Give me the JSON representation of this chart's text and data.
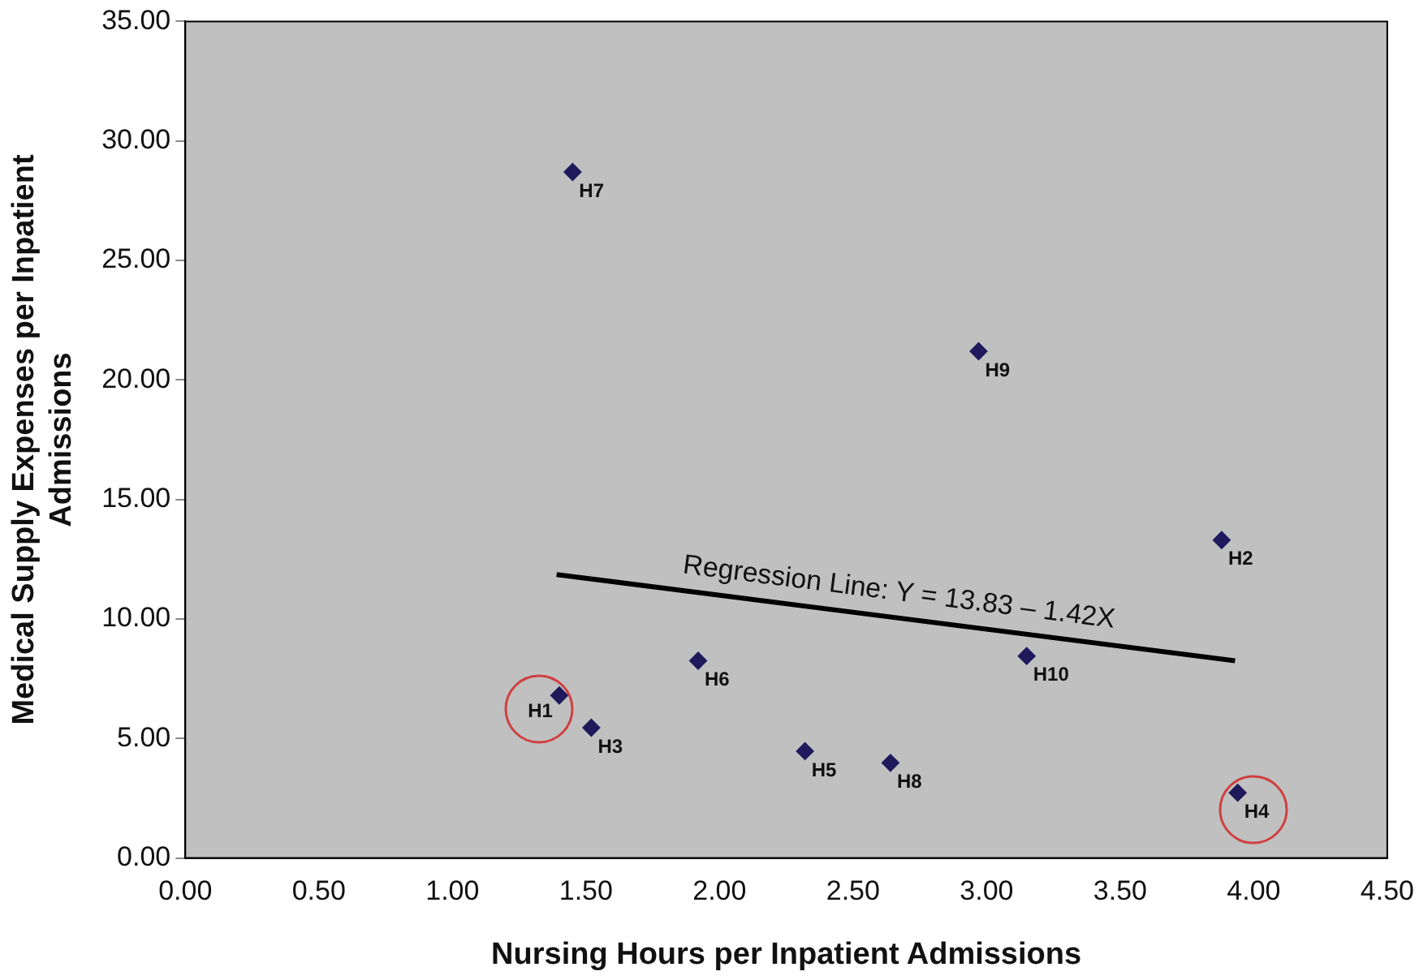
{
  "chart_data": {
    "type": "scatter",
    "xlabel": "Nursing Hours per Inpatient Admissions",
    "ylabel": "Medical Supply Expenses per Inpatient Admissions",
    "xlim": [
      0,
      4.5
    ],
    "ylim": [
      0,
      35
    ],
    "xticks": [
      {
        "value": 0,
        "label": "0.00"
      },
      {
        "value": 0.5,
        "label": "0.50"
      },
      {
        "value": 1,
        "label": "1.00"
      },
      {
        "value": 1.5,
        "label": "1.50"
      },
      {
        "value": 2,
        "label": "2.00"
      },
      {
        "value": 2.5,
        "label": "2.50"
      },
      {
        "value": 3,
        "label": "3.00"
      },
      {
        "value": 3.5,
        "label": "3.50"
      },
      {
        "value": 4,
        "label": "4.00"
      },
      {
        "value": 4.5,
        "label": "4.50"
      }
    ],
    "yticks": [
      {
        "value": 0,
        "label": "0.00"
      },
      {
        "value": 5,
        "label": "5.00"
      },
      {
        "value": 10,
        "label": "10.00"
      },
      {
        "value": 15,
        "label": "15.00"
      },
      {
        "value": 20,
        "label": "20.00"
      },
      {
        "value": 25,
        "label": "25.00"
      },
      {
        "value": 30,
        "label": "30.00"
      },
      {
        "value": 35,
        "label": "35.00"
      }
    ],
    "grid": false,
    "legend": false,
    "series": [
      {
        "color": "#1f1a5c",
        "marker": "diamond",
        "x": [
          1.45,
          2.97,
          3.88,
          1.92,
          3.15,
          1.4,
          1.52,
          2.32,
          2.64,
          3.94
        ],
        "values": [
          28.7,
          21.2,
          13.3,
          8.25,
          8.45,
          6.8,
          5.45,
          4.47,
          3.98,
          2.73
        ]
      },
      {
        "type": "line",
        "color": "#000000",
        "marker": "none",
        "line_style": "solid",
        "x": [
          1.39,
          3.93
        ],
        "values": [
          11.86,
          8.25
        ]
      }
    ],
    "annotations": [
      {
        "text": "H7",
        "x": 1.45,
        "y": 28.7
      },
      {
        "text": "H9",
        "x": 2.97,
        "y": 21.2
      },
      {
        "text": "H2",
        "x": 3.88,
        "y": 13.3
      },
      {
        "text": "H6",
        "x": 1.92,
        "y": 8.25
      },
      {
        "text": "H10",
        "x": 3.15,
        "y": 8.45
      },
      {
        "text": "H1",
        "x": 1.4,
        "y": 6.8
      },
      {
        "text": "H3",
        "x": 1.52,
        "y": 5.45
      },
      {
        "text": "H5",
        "x": 2.32,
        "y": 4.47
      },
      {
        "text": "H8",
        "x": 2.64,
        "y": 3.98
      },
      {
        "text": "H4",
        "x": 3.94,
        "y": 2.73
      },
      {
        "text": "Regression Line: Y = 13.83 – 1.42X",
        "x": 2.66,
        "y": 10.05
      }
    ]
  }
}
